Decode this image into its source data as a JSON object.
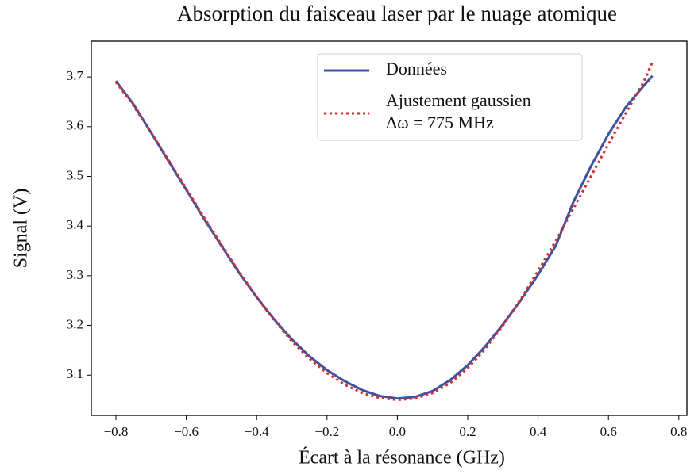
{
  "chart_data": {
    "type": "line",
    "title": "Absorption du faisceau laser par le nuage atomique",
    "xlabel": "Écart à la résonance (GHz)",
    "ylabel": "Signal (V)",
    "annotation": "Δω = 775 MHz",
    "x": [
      -0.8,
      -0.75,
      -0.7,
      -0.65,
      -0.6,
      -0.55,
      -0.5,
      -0.45,
      -0.4,
      -0.35,
      -0.3,
      -0.25,
      -0.2,
      -0.15,
      -0.1,
      -0.05,
      0,
      0.05,
      0.1,
      0.15,
      0.2,
      0.25,
      0.3,
      0.35,
      0.4,
      0.45,
      0.5,
      0.55,
      0.6,
      0.65,
      0.7,
      0.725
    ],
    "series": [
      {
        "name": "Données",
        "color": "#3a53a4",
        "style": "solid",
        "values": [
          3.692,
          3.645,
          3.588,
          3.53,
          3.473,
          3.415,
          3.36,
          3.306,
          3.257,
          3.212,
          3.172,
          3.138,
          3.11,
          3.088,
          3.07,
          3.058,
          3.053,
          3.056,
          3.068,
          3.09,
          3.12,
          3.158,
          3.202,
          3.25,
          3.302,
          3.36,
          3.448,
          3.52,
          3.585,
          3.64,
          3.682,
          3.702
        ]
      },
      {
        "name": "Ajustement gaussien",
        "color": "#e8262a",
        "style": "dotted",
        "values": [
          3.69,
          3.642,
          3.588,
          3.532,
          3.475,
          3.418,
          3.362,
          3.308,
          3.257,
          3.21,
          3.168,
          3.133,
          3.104,
          3.081,
          3.064,
          3.054,
          3.05,
          3.053,
          3.064,
          3.084,
          3.114,
          3.153,
          3.2,
          3.252,
          3.31,
          3.37,
          3.435,
          3.5,
          3.565,
          3.628,
          3.69,
          3.73
        ]
      }
    ],
    "xlim": [
      -0.87,
      0.823
    ],
    "ylim": [
      3.019,
      3.772
    ],
    "xticks": [
      {
        "value": -0.8,
        "label": "−0.8"
      },
      {
        "value": -0.6,
        "label": "−0.6"
      },
      {
        "value": -0.4,
        "label": "−0.4"
      },
      {
        "value": -0.2,
        "label": "−0.2"
      },
      {
        "value": 0,
        "label": "0.0"
      },
      0.2,
      0.4,
      0.6,
      0.8
    ],
    "yticks": [
      3.1,
      3.2,
      3.3,
      3.4,
      3.5,
      3.6,
      3.7
    ],
    "grid": false,
    "legend": "upper center"
  }
}
